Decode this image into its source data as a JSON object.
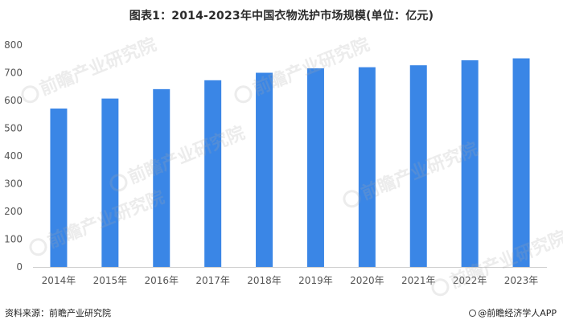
{
  "title": "图表1：2014-2023年中国衣物洗护市场规模(单位：亿元)",
  "chart_data": {
    "type": "bar",
    "title": "图表1：2014-2023年中国衣物洗护市场规模(单位：亿元)",
    "categories": [
      "2014年",
      "2015年",
      "2016年",
      "2017年",
      "2018年",
      "2019年",
      "2020年",
      "2021年",
      "2022年",
      "2023年"
    ],
    "values": [
      571,
      607,
      641,
      673,
      700,
      716,
      720,
      727,
      745,
      752
    ],
    "y_ticks": [
      "0",
      "100",
      "200",
      "300",
      "400",
      "500",
      "600",
      "700",
      "800"
    ],
    "ylim": [
      0,
      800
    ],
    "xlabel": "",
    "ylabel": "",
    "grid": false,
    "bar_color": "#3a86e6"
  },
  "footer": {
    "source": "资料来源：前瞻产业研究院",
    "brand": "@前瞻经济学人APP"
  },
  "watermark": {
    "text": "前瞻产业研究院"
  }
}
